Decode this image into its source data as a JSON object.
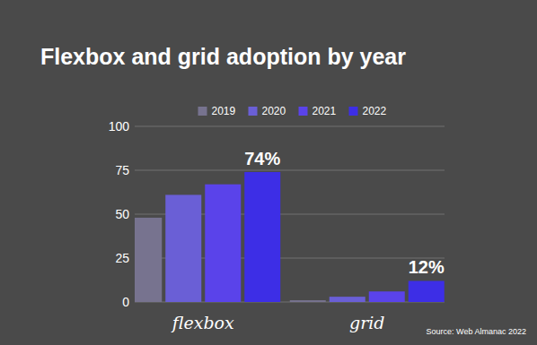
{
  "chart_data": {
    "type": "bar",
    "title": "Flexbox and grid adoption by year",
    "source": "Source: Web Almanac 2022",
    "categories": [
      "flexbox",
      "grid"
    ],
    "series": [
      {
        "name": "2019",
        "color": "#77738f",
        "values": [
          48,
          1
        ]
      },
      {
        "name": "2020",
        "color": "#6a5fd6",
        "values": [
          61,
          3
        ]
      },
      {
        "name": "2021",
        "color": "#5a43ea",
        "values": [
          67,
          6
        ]
      },
      {
        "name": "2022",
        "color": "#3d2ee6",
        "values": [
          74,
          12
        ],
        "value_labels": [
          "74%",
          "12%"
        ]
      }
    ],
    "ylim": [
      0,
      100
    ],
    "yticks": [
      0,
      25,
      50,
      75,
      100
    ],
    "grid": true,
    "data_labels": true,
    "legend": "top"
  }
}
